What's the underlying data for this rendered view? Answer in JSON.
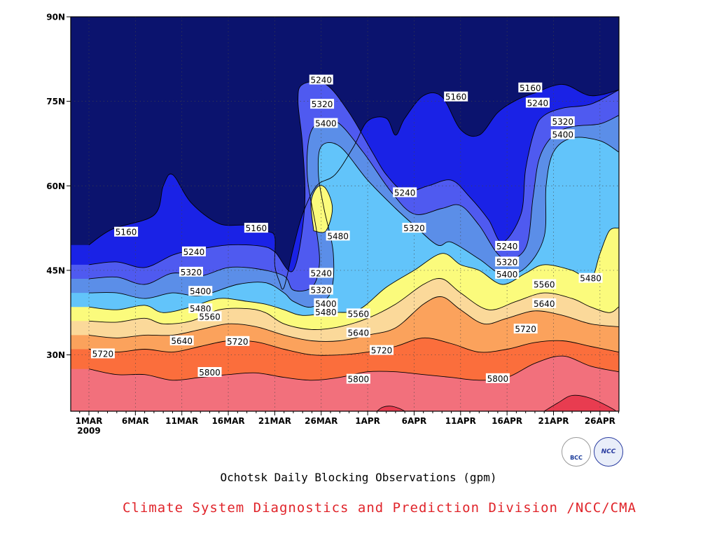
{
  "chart_data": {
    "type": "contour",
    "title": "Ochotsk Daily Blocking Observations (gpm)",
    "credit": "Climate System Diagnostics and Prediction Division /NCC/CMA",
    "x_ticks": [
      "1MAR",
      "6MAR",
      "11MAR",
      "16MAR",
      "21MAR",
      "26MAR",
      "1APR",
      "6APR",
      "11APR",
      "16APR",
      "21APR",
      "26APR"
    ],
    "x_year": "2009",
    "y_ticks": [
      "90N",
      "75N",
      "60N",
      "45N",
      "30N"
    ],
    "xlim": [
      "2009-02-28",
      "2009-04-27"
    ],
    "ylim": [
      20,
      90
    ],
    "grid": true,
    "contour_interval": 80,
    "levels": [
      5160,
      5240,
      5320,
      5400,
      5480,
      5560,
      5640,
      5720,
      5800
    ],
    "level_colors": [
      "#0b136e",
      "#1a22e6",
      "#4f5af0",
      "#5b8ee8",
      "#62c4fa",
      "#fbfb7c",
      "#fbd99a",
      "#fba25c",
      "#fb6e3c",
      "#f2707c"
    ],
    "max_color": "#e83c50",
    "contour_lines": [
      {
        "level": 5160,
        "points": [
          [
            1,
            49.5
          ],
          [
            3.5,
            52.3
          ],
          [
            8,
            54.8
          ],
          [
            9,
            60
          ],
          [
            10,
            62
          ],
          [
            12,
            57
          ],
          [
            15,
            53.3
          ],
          [
            18,
            53
          ],
          [
            20,
            52
          ],
          [
            21,
            51
          ],
          [
            21,
            46
          ],
          [
            21.5,
            43
          ],
          [
            22,
            42
          ],
          [
            23,
            49
          ],
          [
            24,
            55
          ],
          [
            25.5,
            60
          ],
          [
            27.5,
            62
          ],
          [
            29.5,
            67
          ],
          [
            31,
            71.5
          ],
          [
            33,
            72
          ],
          [
            34,
            69
          ],
          [
            35,
            72
          ],
          [
            37,
            76
          ],
          [
            39,
            75.8
          ],
          [
            41,
            70
          ],
          [
            43,
            69
          ],
          [
            45,
            73
          ],
          [
            47,
            75.2
          ],
          [
            49,
            76.5
          ],
          [
            52,
            78
          ],
          [
            55,
            76
          ],
          [
            58,
            77
          ]
        ],
        "labels": [
          {
            "text": "5160",
            "x": 5,
            "y": 51.8
          },
          {
            "text": "5160",
            "x": 19,
            "y": 52.5
          },
          {
            "text": "5160",
            "x": 40.5,
            "y": 75.8
          },
          {
            "text": "5160",
            "x": 48.5,
            "y": 77.4
          }
        ]
      },
      {
        "level": 5240,
        "points": [
          [
            1,
            46
          ],
          [
            4,
            46.5
          ],
          [
            7,
            45.5
          ],
          [
            10,
            47.7
          ],
          [
            12,
            48.5
          ],
          [
            16,
            49.5
          ],
          [
            19.5,
            49.3
          ],
          [
            21,
            48.3
          ],
          [
            23,
            45
          ],
          [
            24.2,
            56
          ],
          [
            24,
            67
          ],
          [
            23.5,
            75
          ],
          [
            24,
            78
          ],
          [
            26.5,
            78
          ],
          [
            29,
            73
          ],
          [
            31.5,
            66
          ],
          [
            33,
            62
          ],
          [
            35,
            59
          ],
          [
            37.5,
            60
          ],
          [
            40,
            61
          ],
          [
            42,
            58
          ],
          [
            44,
            54
          ],
          [
            45.5,
            50
          ],
          [
            47.5,
            55
          ],
          [
            48,
            63
          ],
          [
            49,
            70
          ],
          [
            50,
            72.5
          ],
          [
            52,
            73.8
          ],
          [
            55,
            74.5
          ],
          [
            58,
            77
          ]
        ],
        "labels": [
          {
            "text": "5240",
            "x": 12.3,
            "y": 48.3
          },
          {
            "text": "5240",
            "x": 26,
            "y": 78.8
          },
          {
            "text": "5240",
            "x": 35,
            "y": 58.8
          },
          {
            "text": "5240",
            "x": 46,
            "y": 49.3
          },
          {
            "text": "5240",
            "x": 49.3,
            "y": 74.7
          },
          {
            "text": "5240",
            "x": 26,
            "y": 44.5
          }
        ]
      },
      {
        "level": 5320,
        "points": [
          [
            1,
            43.5
          ],
          [
            4,
            43.8
          ],
          [
            7,
            42.5
          ],
          [
            10,
            44.5
          ],
          [
            13,
            44
          ],
          [
            16,
            45.5
          ],
          [
            19,
            45.3
          ],
          [
            22,
            44
          ],
          [
            23,
            41.5
          ],
          [
            25,
            42
          ],
          [
            25.8,
            46
          ],
          [
            25.5,
            52
          ],
          [
            24.5,
            62
          ],
          [
            25,
            70
          ],
          [
            27.5,
            71.5
          ],
          [
            30.5,
            66
          ],
          [
            33.5,
            59
          ],
          [
            36,
            55
          ],
          [
            39,
            56
          ],
          [
            41,
            56.5
          ],
          [
            43,
            53
          ],
          [
            45.5,
            47.2
          ],
          [
            48,
            49
          ],
          [
            48.8,
            58
          ],
          [
            49.5,
            65
          ],
          [
            51,
            69
          ],
          [
            53,
            70.5
          ],
          [
            56,
            71
          ],
          [
            58,
            72.5
          ]
        ],
        "labels": [
          {
            "text": "5320",
            "x": 12,
            "y": 44.7
          },
          {
            "text": "5320",
            "x": 26,
            "y": 41.5
          },
          {
            "text": "5320",
            "x": 26.1,
            "y": 74.5
          },
          {
            "text": "5320",
            "x": 36,
            "y": 52.5
          },
          {
            "text": "5320",
            "x": 46,
            "y": 46.5
          },
          {
            "text": "5320",
            "x": 52,
            "y": 71.4
          }
        ]
      },
      {
        "level": 5400,
        "points": [
          [
            1,
            41
          ],
          [
            4,
            41
          ],
          [
            7,
            40
          ],
          [
            10,
            41
          ],
          [
            13,
            40.5
          ],
          [
            17,
            42.5
          ],
          [
            20,
            42.8
          ],
          [
            22,
            41
          ],
          [
            23,
            39.5
          ],
          [
            25,
            38.5
          ],
          [
            27,
            41
          ],
          [
            27.3,
            48
          ],
          [
            26.3,
            56
          ],
          [
            25.7,
            62
          ],
          [
            26,
            67
          ],
          [
            28,
            67
          ],
          [
            31,
            61
          ],
          [
            34,
            56
          ],
          [
            36,
            53
          ],
          [
            38.5,
            49.5
          ],
          [
            40,
            50
          ],
          [
            43,
            47
          ],
          [
            45.5,
            44.3
          ],
          [
            48,
            45.5
          ],
          [
            50,
            51
          ],
          [
            50.2,
            60
          ],
          [
            51,
            66
          ],
          [
            53,
            68.5
          ],
          [
            56,
            68
          ],
          [
            58,
            66
          ]
        ],
        "labels": [
          {
            "text": "5400",
            "x": 13,
            "y": 41.3
          },
          {
            "text": "5400",
            "x": 26.5,
            "y": 39.1
          },
          {
            "text": "5400",
            "x": 26.5,
            "y": 71.1
          },
          {
            "text": "5400",
            "x": 46,
            "y": 44.3
          },
          {
            "text": "5400",
            "x": 52,
            "y": 69.1
          }
        ]
      },
      {
        "level": 5480,
        "points": [
          [
            1,
            38.5
          ],
          [
            4,
            38
          ],
          [
            7,
            38.8
          ],
          [
            9,
            37.5
          ],
          [
            12,
            38.5
          ],
          [
            15,
            40
          ],
          [
            18,
            39.5
          ],
          [
            20,
            39
          ],
          [
            22,
            38
          ],
          [
            24,
            37
          ],
          [
            27,
            37.5
          ],
          [
            30,
            38
          ],
          [
            33,
            42
          ],
          [
            36,
            45
          ],
          [
            39,
            48
          ],
          [
            41,
            46
          ],
          [
            43,
            45
          ],
          [
            45.5,
            42.5
          ],
          [
            48,
            44.5
          ],
          [
            50,
            46
          ],
          [
            53,
            45
          ],
          [
            55,
            43.5
          ],
          [
            56,
            48
          ],
          [
            57,
            52
          ],
          [
            58,
            52.5
          ]
        ],
        "labels": [
          {
            "text": "5480",
            "x": 13,
            "y": 38.2
          },
          {
            "text": "5480",
            "x": 26.5,
            "y": 37.6
          },
          {
            "text": "5480",
            "x": 55,
            "y": 43.6
          }
        ]
      },
      {
        "level": 5480,
        "points": [
          [
            25.2,
            52
          ],
          [
            24.9,
            57
          ],
          [
            25.6,
            59.8
          ],
          [
            26.5,
            59.5
          ],
          [
            27.2,
            56
          ],
          [
            26.5,
            52
          ],
          [
            25.2,
            52
          ]
        ],
        "labels": [
          {
            "text": "5480",
            "x": 27.8,
            "y": 51.1
          }
        ]
      },
      {
        "level": 5560,
        "points": [
          [
            1,
            36
          ],
          [
            4,
            35.8
          ],
          [
            7,
            36.5
          ],
          [
            9,
            35.5
          ],
          [
            12,
            36
          ],
          [
            15,
            38
          ],
          [
            18,
            38.2
          ],
          [
            20,
            37.5
          ],
          [
            22,
            35.5
          ],
          [
            25,
            34.5
          ],
          [
            28,
            35
          ],
          [
            31,
            36.5
          ],
          [
            34,
            39
          ],
          [
            37,
            42.5
          ],
          [
            39,
            43.5
          ],
          [
            41,
            41
          ],
          [
            44,
            38
          ],
          [
            47,
            39.5
          ],
          [
            50,
            41
          ],
          [
            53,
            40
          ],
          [
            55,
            38.5
          ],
          [
            57,
            37.5
          ],
          [
            58,
            38.5
          ]
        ],
        "labels": [
          {
            "text": "5560",
            "x": 14,
            "y": 36.8
          },
          {
            "text": "5560",
            "x": 30,
            "y": 37.3
          },
          {
            "text": "5560",
            "x": 50,
            "y": 42.5
          }
        ]
      },
      {
        "level": 5640,
        "points": [
          [
            1,
            33.5
          ],
          [
            4,
            33
          ],
          [
            7,
            33.5
          ],
          [
            10,
            33.5
          ],
          [
            13,
            34.5
          ],
          [
            16,
            35.5
          ],
          [
            19,
            35
          ],
          [
            22,
            33.5
          ],
          [
            25,
            32.5
          ],
          [
            28,
            32.5
          ],
          [
            31,
            33.5
          ],
          [
            34,
            34.8
          ],
          [
            37,
            39
          ],
          [
            39,
            40.3
          ],
          [
            41,
            38
          ],
          [
            43.5,
            35.5
          ],
          [
            46,
            36.5
          ],
          [
            49,
            37.8
          ],
          [
            52,
            37
          ],
          [
            55,
            35.5
          ],
          [
            58,
            35
          ]
        ],
        "labels": [
          {
            "text": "5640",
            "x": 11,
            "y": 32.5
          },
          {
            "text": "5640",
            "x": 30,
            "y": 33.9
          },
          {
            "text": "5640",
            "x": 50,
            "y": 39.1
          }
        ]
      },
      {
        "level": 5720,
        "points": [
          [
            1,
            31
          ],
          [
            4,
            30.5
          ],
          [
            7,
            31
          ],
          [
            10,
            30.5
          ],
          [
            13,
            31.5
          ],
          [
            16,
            32.5
          ],
          [
            19,
            32.3
          ],
          [
            22,
            31
          ],
          [
            25,
            30
          ],
          [
            28,
            30
          ],
          [
            31,
            30.5
          ],
          [
            34,
            31.5
          ],
          [
            37,
            33
          ],
          [
            40,
            32
          ],
          [
            43,
            30.5
          ],
          [
            46,
            31
          ],
          [
            49,
            32.2
          ],
          [
            52,
            32.5
          ],
          [
            55,
            31.5
          ],
          [
            58,
            30.5
          ]
        ],
        "labels": [
          {
            "text": "5720",
            "x": 2.5,
            "y": 30.2
          },
          {
            "text": "5720",
            "x": 17,
            "y": 32.4
          },
          {
            "text": "5720",
            "x": 32.5,
            "y": 30.8
          },
          {
            "text": "5720",
            "x": 48,
            "y": 34.6
          }
        ]
      },
      {
        "level": 5800,
        "points": [
          [
            1,
            27.5
          ],
          [
            4,
            26.5
          ],
          [
            7,
            26.5
          ],
          [
            10,
            25.5
          ],
          [
            13,
            26
          ],
          [
            16,
            26.5
          ],
          [
            19,
            26.8
          ],
          [
            22,
            26
          ],
          [
            25,
            25.5
          ],
          [
            28,
            26
          ],
          [
            31,
            27
          ],
          [
            34,
            27
          ],
          [
            37,
            26.5
          ],
          [
            40,
            26
          ],
          [
            43,
            25.5
          ],
          [
            46,
            26
          ],
          [
            49,
            28.5
          ],
          [
            52,
            29.8
          ],
          [
            55,
            28
          ],
          [
            58,
            27
          ]
        ],
        "labels": [
          {
            "text": "5800",
            "x": 14,
            "y": 26.9
          },
          {
            "text": "5800",
            "x": 30,
            "y": 25.7
          },
          {
            "text": "5800",
            "x": 45,
            "y": 25.8
          }
        ]
      }
    ],
    "max_regions": [
      [
        [
          32,
          20
        ],
        [
          32.6,
          20.7
        ],
        [
          33.5,
          20.9
        ],
        [
          34.4,
          20.5
        ],
        [
          35,
          20
        ]
      ],
      [
        [
          50,
          20
        ],
        [
          51.5,
          21.5
        ],
        [
          53,
          22.8
        ],
        [
          55,
          22.3
        ],
        [
          57.5,
          20.3
        ],
        [
          57.5,
          20
        ]
      ]
    ]
  }
}
